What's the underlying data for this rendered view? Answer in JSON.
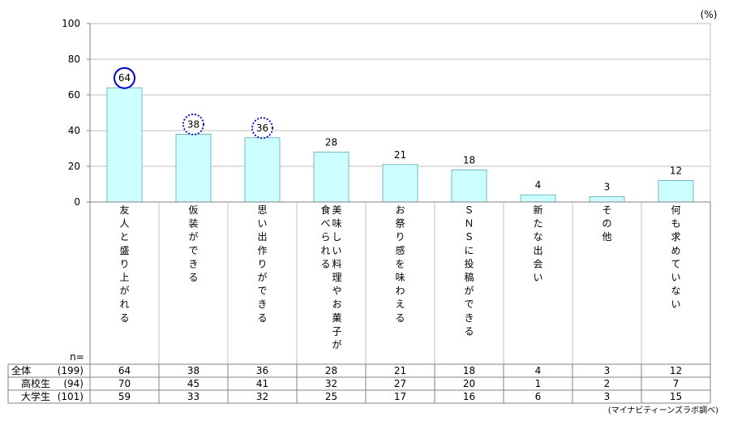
{
  "chart_data": {
    "type": "bar",
    "unit_label": "(%)",
    "ylim": [
      0,
      100
    ],
    "yticks": [
      "0",
      "20",
      "40",
      "60",
      "80",
      "100"
    ],
    "categories": [
      "友人と盛り上がれる",
      "仮装ができる",
      "思い出作りができる",
      "美味しい料理やお菓子が食べられる",
      "お祭り感を味わえる",
      "ＳＮＳに投稿ができる",
      "新たな出会い",
      "その他",
      "何も求めていない"
    ],
    "category_columns": [
      [
        "友人と盛り上がれる"
      ],
      [
        "仮装ができる"
      ],
      [
        "思い出作りができる"
      ],
      [
        "美味しい料理やお菓子が",
        "食べられる"
      ],
      [
        "お祭り感を味わえる"
      ],
      [
        "ＳＮＳに投稿ができる"
      ],
      [
        "新たな出会い"
      ],
      [
        "その他"
      ],
      [
        "何も求めていない"
      ]
    ],
    "values": [
      64,
      38,
      36,
      28,
      21,
      18,
      4,
      3,
      12
    ],
    "bar_color": "#ccffff",
    "bar_stroke": "#5aa8b8",
    "highlights": [
      {
        "index": 0,
        "style": "solid"
      },
      {
        "index": 1,
        "style": "dotted"
      },
      {
        "index": 2,
        "style": "dotted"
      }
    ],
    "highlight_color": "#0000cc",
    "grid": true,
    "legend": "none"
  },
  "table": {
    "n_header": "n=",
    "rows": [
      {
        "group": "全体",
        "n": "(199)",
        "values": [
          64,
          38,
          36,
          28,
          21,
          18,
          4,
          3,
          12
        ]
      },
      {
        "group": "高校生",
        "n": "(94)",
        "values": [
          70,
          45,
          41,
          32,
          27,
          20,
          1,
          2,
          7
        ]
      },
      {
        "group": "大学生",
        "n": "(101)",
        "values": [
          59,
          33,
          32,
          25,
          17,
          16,
          6,
          3,
          15
        ]
      }
    ]
  },
  "source_note": "(マイナビティーンズラボ調べ)"
}
